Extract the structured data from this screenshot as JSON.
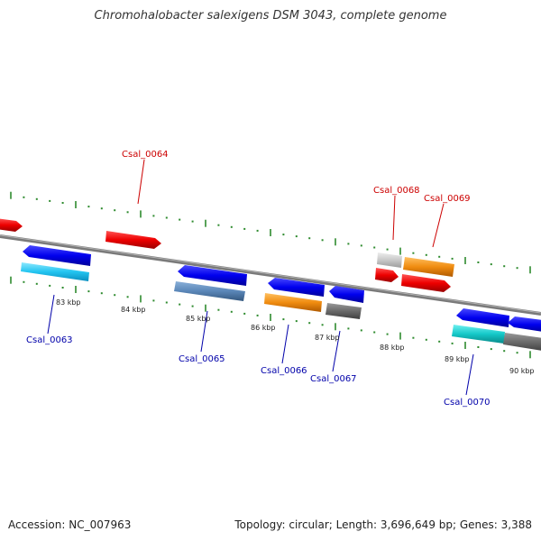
{
  "title": "Chromohalobacter salexigens DSM 3043, complete genome",
  "footer": {
    "accession": "Accession: NC_007963",
    "summary": "Topology: circular; Length: 3,696,649 bp; Genes: 3,388"
  },
  "colors": {
    "background": "#ffffff",
    "backbone": "#888888",
    "tick": "#2e8b2e",
    "label_forward": "#cc0000",
    "label_reverse": "#0000aa"
  },
  "scale_labels": [
    "83 kbp",
    "84 kbp",
    "85 kbp",
    "86 kbp",
    "87 kbp",
    "88 kbp",
    "89 kbp",
    "90 kbp"
  ],
  "gene_labels": [
    {
      "text": "Csal_0063",
      "strand": "reverse"
    },
    {
      "text": "Csal_0064",
      "strand": "forward"
    },
    {
      "text": "Csal_0065",
      "strand": "reverse"
    },
    {
      "text": "Csal_0066",
      "strand": "reverse"
    },
    {
      "text": "Csal_0067",
      "strand": "reverse"
    },
    {
      "text": "Csal_0068",
      "strand": "forward"
    },
    {
      "text": "Csal_0069",
      "strand": "forward"
    },
    {
      "text": "Csal_0070",
      "strand": "reverse"
    }
  ]
}
